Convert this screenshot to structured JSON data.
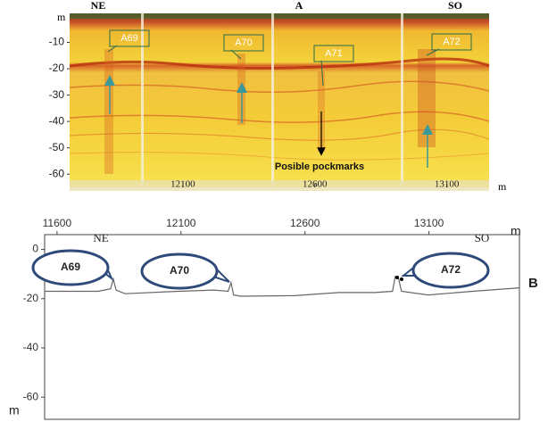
{
  "chart_data": [
    {
      "type": "seismic",
      "labels": [
        "NE",
        "A",
        "SO"
      ],
      "y_unit": "m",
      "x_unit": "m",
      "xlim": [
        11671,
        13260
      ],
      "ylim": [
        -65,
        1
      ],
      "xticks": [
        12100,
        12600,
        13100
      ],
      "yticks": [
        -10,
        -20,
        -30,
        -40,
        -50,
        -60
      ],
      "annotations": [
        "A69",
        "A70",
        "A71",
        "A72",
        "Posible pockmarks"
      ]
    },
    {
      "type": "line",
      "panel_label": "B",
      "labels": [
        "NE",
        "SO"
      ],
      "x_unit": "m",
      "y_unit": "m",
      "xlim": [
        11550,
        13465
      ],
      "ylim": [
        -69,
        6
      ],
      "xticks": [
        11600,
        12100,
        12600,
        13100
      ],
      "yticks": [
        0,
        -20,
        -40,
        -60
      ],
      "color": "#666666",
      "x": [
        11550,
        11766,
        11816,
        11827,
        11838,
        11874,
        12090,
        12233,
        12290,
        12302,
        12312,
        12341,
        12557,
        12737,
        12881,
        12953,
        12964,
        12978,
        12989,
        13097,
        13277,
        13465
      ],
      "values": [
        -17,
        -17,
        -16,
        -12,
        -16.5,
        -18,
        -17,
        -16.5,
        -17,
        -13.5,
        -18.5,
        -19,
        -18.8,
        -17.5,
        -17.5,
        -17,
        -11,
        -12,
        -17,
        -18.5,
        -17,
        -15.6
      ],
      "annotations": [
        "A69",
        "A70",
        "A72"
      ]
    }
  ]
}
